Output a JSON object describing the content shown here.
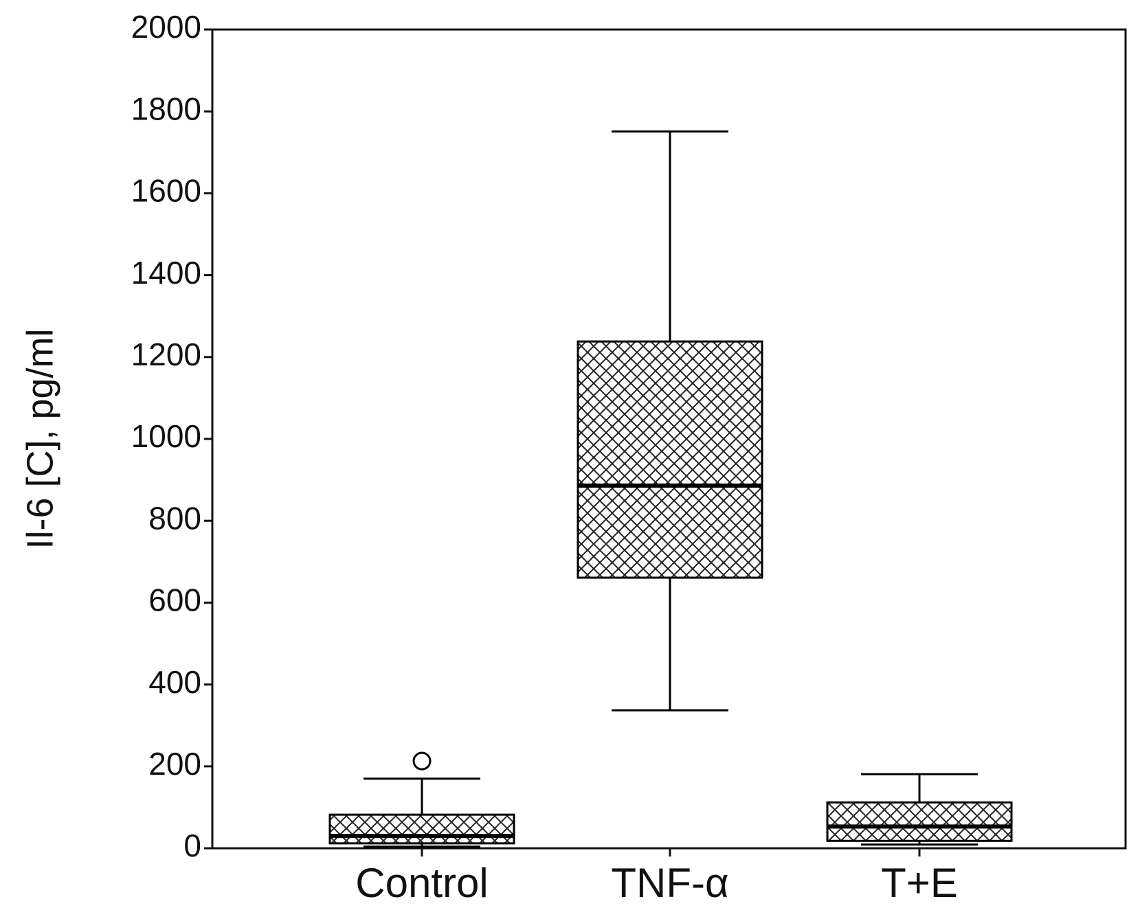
{
  "chart_data": {
    "type": "box",
    "ylabel": "Il-6 [C], pg/ml",
    "categories": [
      "Control",
      "TNF-α",
      "T+E"
    ],
    "boxes": [
      {
        "min": 4,
        "q1": 12,
        "median": 30,
        "q3": 82,
        "max": 170,
        "outliers": [
          213
        ]
      },
      {
        "min": 337,
        "q1": 661,
        "median": 886,
        "q3": 1238,
        "max": 1751,
        "outliers": []
      },
      {
        "min": 9,
        "q1": 18,
        "median": 53,
        "q3": 112,
        "max": 181,
        "outliers": []
      }
    ],
    "ylim": [
      0,
      2000
    ],
    "yticks": [
      0,
      200,
      400,
      600,
      800,
      1000,
      1200,
      1400,
      1600,
      1800,
      2000
    ],
    "color": "#000000"
  }
}
